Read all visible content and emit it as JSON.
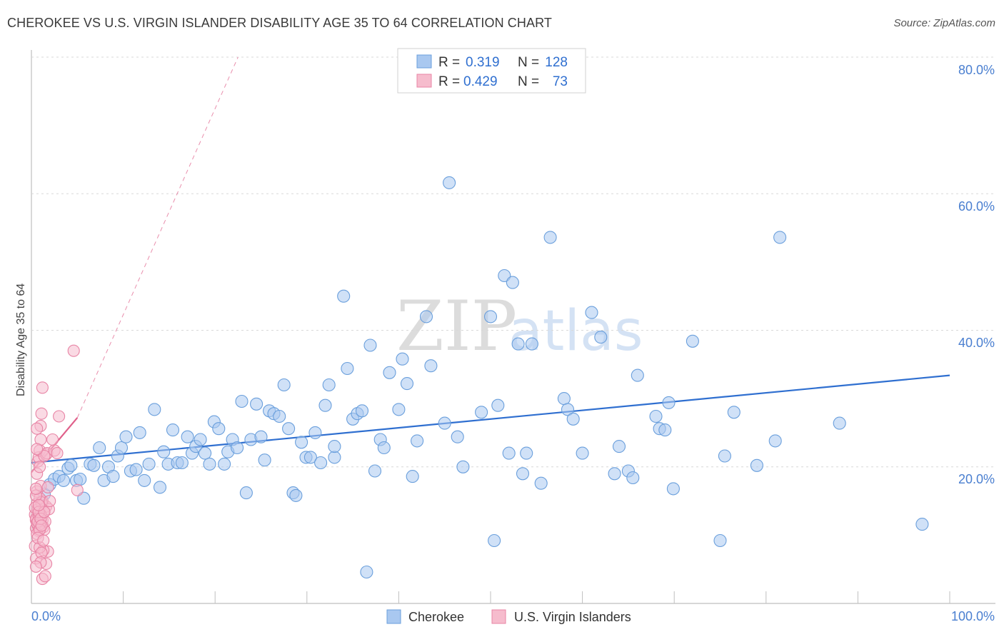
{
  "title": "CHEROKEE VS U.S. VIRGIN ISLANDER DISABILITY AGE 35 TO 64 CORRELATION CHART",
  "source": "Source: ZipAtlas.com",
  "watermark": {
    "zip": "ZIP",
    "atlas": "atlas"
  },
  "colors": {
    "blue_fill": "#a9c8f0",
    "blue_stroke": "#6a9fdc",
    "blue_line": "#2f6fd0",
    "pink_fill": "#f6bccd",
    "pink_stroke": "#e884a5",
    "pink_line": "#e0608a",
    "grid": "#d8d8d8",
    "tick_text": "#4a7fd0"
  },
  "legend": {
    "rows": [
      {
        "r_label": "R =",
        "r_value": "0.319",
        "n_label": "N =",
        "n_value": "128"
      },
      {
        "r_label": "R =",
        "r_value": "0.429",
        "n_label": "N =",
        "n_value": "73"
      }
    ]
  },
  "chart_data": {
    "type": "scatter",
    "title": "CHEROKEE VS U.S. VIRGIN ISLANDER DISABILITY AGE 35 TO 64 CORRELATION CHART",
    "xlabel": "",
    "ylabel": "Disability Age 35 to 64",
    "xlim": [
      0,
      100
    ],
    "ylim": [
      0,
      80
    ],
    "x_tick_labels": [
      "0.0%",
      "100.0%"
    ],
    "y_tick_labels": [
      "20.0%",
      "40.0%",
      "60.0%",
      "80.0%"
    ],
    "y_ticks": [
      20,
      40,
      60,
      80
    ],
    "x_minor_ticks": [
      0,
      10,
      20,
      30,
      40,
      50,
      60,
      70,
      80,
      90,
      100
    ],
    "grid": true,
    "legend_position": "bottom-center",
    "series": [
      {
        "name": "Cherokee",
        "color": "#6a9fdc",
        "trend": {
          "x": [
            0,
            100
          ],
          "y": [
            20.6,
            33.4
          ],
          "style": "solid"
        },
        "points": [
          [
            1.4,
            16.0
          ],
          [
            2.0,
            17.4
          ],
          [
            2.5,
            18.2
          ],
          [
            3.0,
            18.6
          ],
          [
            3.5,
            18.0
          ],
          [
            4.0,
            19.8
          ],
          [
            4.3,
            20.2
          ],
          [
            4.9,
            18.0
          ],
          [
            5.3,
            18.2
          ],
          [
            5.7,
            15.4
          ],
          [
            6.4,
            20.4
          ],
          [
            6.8,
            20.2
          ],
          [
            7.4,
            22.8
          ],
          [
            7.9,
            18.0
          ],
          [
            8.4,
            20.0
          ],
          [
            8.9,
            18.6
          ],
          [
            9.4,
            21.6
          ],
          [
            9.8,
            22.8
          ],
          [
            10.3,
            24.4
          ],
          [
            10.8,
            19.4
          ],
          [
            11.4,
            19.6
          ],
          [
            11.8,
            25.0
          ],
          [
            12.3,
            18.0
          ],
          [
            12.8,
            20.4
          ],
          [
            13.4,
            28.4
          ],
          [
            14.0,
            17.0
          ],
          [
            14.4,
            22.2
          ],
          [
            14.9,
            20.4
          ],
          [
            15.4,
            25.4
          ],
          [
            15.9,
            20.6
          ],
          [
            16.4,
            20.6
          ],
          [
            17.0,
            24.4
          ],
          [
            17.5,
            22.0
          ],
          [
            17.9,
            23.0
          ],
          [
            18.4,
            24.0
          ],
          [
            18.9,
            22.0
          ],
          [
            19.4,
            20.4
          ],
          [
            19.9,
            26.6
          ],
          [
            20.4,
            25.6
          ],
          [
            21.0,
            20.4
          ],
          [
            21.4,
            22.2
          ],
          [
            21.9,
            24.0
          ],
          [
            22.4,
            22.8
          ],
          [
            22.9,
            29.6
          ],
          [
            23.4,
            16.2
          ],
          [
            23.9,
            24.0
          ],
          [
            24.5,
            29.2
          ],
          [
            25.0,
            24.4
          ],
          [
            25.4,
            21.0
          ],
          [
            25.9,
            28.2
          ],
          [
            26.4,
            27.8
          ],
          [
            27.0,
            27.4
          ],
          [
            27.5,
            32.0
          ],
          [
            28.0,
            25.6
          ],
          [
            28.5,
            16.2
          ],
          [
            28.8,
            15.8
          ],
          [
            29.4,
            23.6
          ],
          [
            29.9,
            21.4
          ],
          [
            30.4,
            21.4
          ],
          [
            30.9,
            25.0
          ],
          [
            31.5,
            20.6
          ],
          [
            32.0,
            29.0
          ],
          [
            32.4,
            32.0
          ],
          [
            33.0,
            21.4
          ],
          [
            33.0,
            23.0
          ],
          [
            34.0,
            45.0
          ],
          [
            34.4,
            34.4
          ],
          [
            35.0,
            27.0
          ],
          [
            35.5,
            27.8
          ],
          [
            36.0,
            28.2
          ],
          [
            36.9,
            37.8
          ],
          [
            37.4,
            19.4
          ],
          [
            38.0,
            24.0
          ],
          [
            38.4,
            22.8
          ],
          [
            39.0,
            33.8
          ],
          [
            40.0,
            28.4
          ],
          [
            40.4,
            35.8
          ],
          [
            40.9,
            32.2
          ],
          [
            41.5,
            18.6
          ],
          [
            42.0,
            23.8
          ],
          [
            43.0,
            42.0
          ],
          [
            43.5,
            34.8
          ],
          [
            45.0,
            26.4
          ],
          [
            45.5,
            61.6
          ],
          [
            46.4,
            24.4
          ],
          [
            47.0,
            20.0
          ],
          [
            49.0,
            28.0
          ],
          [
            50.0,
            42.0
          ],
          [
            50.4,
            9.2
          ],
          [
            50.8,
            29.0
          ],
          [
            51.5,
            48.0
          ],
          [
            52.0,
            22.0
          ],
          [
            52.4,
            47.0
          ],
          [
            53.0,
            38.0
          ],
          [
            53.5,
            19.0
          ],
          [
            53.9,
            22.0
          ],
          [
            54.5,
            38.0
          ],
          [
            55.5,
            17.6
          ],
          [
            56.5,
            53.6
          ],
          [
            58.0,
            30.0
          ],
          [
            58.4,
            28.4
          ],
          [
            59.0,
            27.0
          ],
          [
            60.0,
            22.0
          ],
          [
            61.0,
            42.6
          ],
          [
            62.0,
            39.0
          ],
          [
            63.5,
            19.0
          ],
          [
            64.0,
            23.0
          ],
          [
            65.0,
            19.4
          ],
          [
            65.5,
            18.4
          ],
          [
            66.0,
            33.4
          ],
          [
            68.0,
            27.4
          ],
          [
            68.4,
            25.6
          ],
          [
            69.0,
            25.4
          ],
          [
            69.4,
            29.4
          ],
          [
            69.9,
            16.8
          ],
          [
            72.0,
            38.4
          ],
          [
            75.0,
            9.2
          ],
          [
            75.5,
            21.6
          ],
          [
            76.5,
            28.0
          ],
          [
            79.0,
            20.2
          ],
          [
            81.0,
            23.8
          ],
          [
            81.5,
            53.6
          ],
          [
            88.0,
            26.4
          ],
          [
            97.0,
            11.6
          ],
          [
            36.5,
            4.6
          ]
        ]
      },
      {
        "name": "U.S. Virgin Islanders",
        "color": "#e884a5",
        "trend": {
          "x": [
            0,
            5
          ],
          "y": [
            19.2,
            27.2
          ],
          "style": "solid",
          "extension": {
            "x": [
              5,
              22.5
            ],
            "y": [
              27.2,
              80
            ],
            "style": "dashed"
          }
        },
        "points": [
          [
            0.4,
            13.0
          ],
          [
            0.5,
            11.0
          ],
          [
            0.5,
            12.2
          ],
          [
            0.6,
            14.6
          ],
          [
            0.6,
            16.4
          ],
          [
            0.7,
            13.6
          ],
          [
            0.7,
            11.4
          ],
          [
            0.8,
            12.6
          ],
          [
            0.8,
            10.6
          ],
          [
            0.9,
            14.0
          ],
          [
            0.4,
            8.4
          ],
          [
            0.5,
            6.6
          ],
          [
            0.6,
            19.0
          ],
          [
            0.7,
            20.8
          ],
          [
            0.8,
            21.4
          ],
          [
            0.9,
            22.4
          ],
          [
            1.0,
            24.0
          ],
          [
            1.0,
            26.0
          ],
          [
            1.1,
            27.8
          ],
          [
            1.2,
            31.6
          ],
          [
            1.2,
            12.2
          ],
          [
            1.3,
            11.2
          ],
          [
            1.3,
            13.4
          ],
          [
            1.4,
            10.8
          ],
          [
            1.5,
            12.0
          ],
          [
            1.6,
            14.2
          ],
          [
            1.2,
            15.0
          ],
          [
            1.0,
            17.2
          ],
          [
            0.9,
            15.4
          ],
          [
            1.6,
            21.8
          ],
          [
            1.7,
            22.0
          ],
          [
            1.2,
            3.6
          ],
          [
            1.5,
            4.0
          ],
          [
            1.6,
            5.8
          ],
          [
            1.8,
            7.6
          ],
          [
            1.3,
            7.8
          ],
          [
            1.9,
            13.8
          ],
          [
            2.3,
            24.0
          ],
          [
            2.5,
            22.4
          ],
          [
            2.8,
            22.0
          ],
          [
            3.0,
            27.4
          ],
          [
            4.6,
            37.0
          ],
          [
            5.0,
            16.6
          ],
          [
            0.5,
            12.4
          ],
          [
            0.6,
            11.8
          ],
          [
            0.7,
            13.8
          ],
          [
            0.8,
            12.8
          ],
          [
            0.9,
            11.6
          ],
          [
            1.0,
            13.0
          ],
          [
            1.1,
            14.8
          ],
          [
            0.4,
            14.0
          ],
          [
            0.5,
            15.8
          ],
          [
            0.6,
            10.2
          ],
          [
            0.7,
            12.0
          ],
          [
            0.8,
            13.4
          ],
          [
            0.9,
            10.8
          ],
          [
            1.0,
            12.4
          ],
          [
            1.1,
            11.4
          ],
          [
            1.4,
            21.6
          ],
          [
            0.9,
            8.2
          ],
          [
            1.4,
            13.4
          ],
          [
            0.6,
            25.6
          ],
          [
            1.1,
            7.4
          ],
          [
            0.5,
            16.8
          ],
          [
            0.8,
            14.4
          ],
          [
            0.7,
            9.6
          ],
          [
            1.3,
            9.2
          ],
          [
            0.6,
            22.6
          ],
          [
            1.8,
            17.0
          ],
          [
            1.0,
            6.0
          ],
          [
            2.0,
            15.0
          ],
          [
            0.5,
            5.4
          ],
          [
            0.9,
            20.0
          ]
        ]
      }
    ]
  },
  "bottom_legend": {
    "items": [
      {
        "label": "Cherokee"
      },
      {
        "label": "U.S. Virgin Islanders"
      }
    ]
  }
}
